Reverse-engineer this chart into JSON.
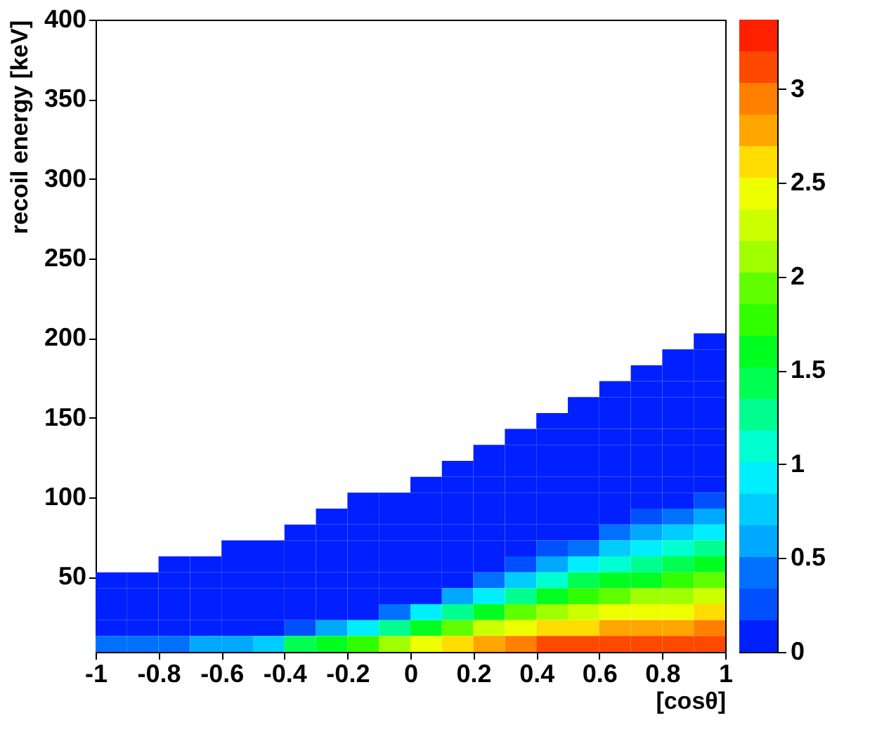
{
  "chart_data": {
    "type": "heatmap",
    "xlabel": "[cosθ]",
    "ylabel": "recoil energy [keV]",
    "x": [
      -0.95,
      -0.85,
      -0.75,
      -0.65,
      -0.55,
      -0.45,
      -0.35,
      -0.25,
      -0.15,
      -0.05,
      0.05,
      0.15,
      0.25,
      0.35,
      0.45,
      0.55,
      0.65,
      0.75,
      0.85,
      0.95
    ],
    "y": [
      198,
      188,
      178,
      168,
      158,
      148,
      138,
      128,
      118,
      108,
      98,
      88,
      78,
      68,
      58,
      48,
      38,
      28,
      18,
      8
    ],
    "cells": [
      [
        null,
        null,
        null,
        null,
        null,
        null,
        null,
        null,
        null,
        null,
        null,
        null,
        null,
        null,
        null,
        null,
        null,
        null,
        null,
        0.05
      ],
      [
        null,
        null,
        null,
        null,
        null,
        null,
        null,
        null,
        null,
        null,
        null,
        null,
        null,
        null,
        null,
        null,
        null,
        null,
        0.05,
        0.05
      ],
      [
        null,
        null,
        null,
        null,
        null,
        null,
        null,
        null,
        null,
        null,
        null,
        null,
        null,
        null,
        null,
        null,
        null,
        0.05,
        0.05,
        0.05
      ],
      [
        null,
        null,
        null,
        null,
        null,
        null,
        null,
        null,
        null,
        null,
        null,
        null,
        null,
        null,
        null,
        null,
        0.05,
        0.05,
        0.05,
        0.05
      ],
      [
        null,
        null,
        null,
        null,
        null,
        null,
        null,
        null,
        null,
        null,
        null,
        null,
        null,
        null,
        null,
        0.05,
        0.05,
        0.05,
        0.05,
        0.05
      ],
      [
        null,
        null,
        null,
        null,
        null,
        null,
        null,
        null,
        null,
        null,
        null,
        null,
        null,
        null,
        0.05,
        0.05,
        0.05,
        0.05,
        0.05,
        0.05
      ],
      [
        null,
        null,
        null,
        null,
        null,
        null,
        null,
        null,
        null,
        null,
        null,
        null,
        null,
        0.05,
        0.05,
        0.05,
        0.05,
        0.05,
        0.05,
        0.05
      ],
      [
        null,
        null,
        null,
        null,
        null,
        null,
        null,
        null,
        null,
        null,
        null,
        null,
        0.05,
        0.05,
        0.05,
        0.05,
        0.05,
        0.05,
        0.05,
        0.05
      ],
      [
        null,
        null,
        null,
        null,
        null,
        null,
        null,
        null,
        null,
        null,
        null,
        0.05,
        0.05,
        0.05,
        0.05,
        0.05,
        0.05,
        0.05,
        0.05,
        0.1
      ],
      [
        null,
        null,
        null,
        null,
        null,
        null,
        null,
        null,
        null,
        null,
        0.05,
        0.05,
        0.05,
        0.05,
        0.05,
        0.05,
        0.05,
        0.05,
        0.1,
        0.1
      ],
      [
        null,
        null,
        null,
        null,
        null,
        null,
        null,
        null,
        0.05,
        0.05,
        0.05,
        0.05,
        0.05,
        0.05,
        0.05,
        0.05,
        0.1,
        0.1,
        0.1,
        0.24
      ],
      [
        null,
        null,
        null,
        null,
        null,
        null,
        null,
        0.05,
        0.05,
        0.05,
        0.05,
        0.05,
        0.05,
        0.05,
        0.05,
        0.1,
        0.1,
        0.17,
        0.41,
        0.57
      ],
      [
        null,
        null,
        null,
        null,
        null,
        null,
        0.05,
        0.05,
        0.05,
        0.05,
        0.05,
        0.05,
        0.05,
        0.1,
        0.1,
        0.1,
        0.34,
        0.55,
        0.76,
        0.9
      ],
      [
        null,
        null,
        null,
        null,
        0.05,
        0.05,
        0.05,
        0.05,
        0.05,
        0.05,
        0.05,
        0.05,
        0.1,
        0.1,
        0.17,
        0.48,
        0.74,
        0.92,
        1.11,
        1.23
      ],
      [
        null,
        null,
        0.05,
        0.05,
        0.05,
        0.05,
        0.05,
        0.05,
        0.05,
        0.05,
        0.05,
        0.1,
        0.1,
        0.27,
        0.65,
        0.92,
        1.15,
        1.3,
        1.46,
        1.56
      ],
      [
        0.05,
        0.05,
        0.05,
        0.05,
        0.05,
        0.05,
        0.05,
        0.05,
        0.05,
        0.1,
        0.1,
        0.1,
        0.41,
        0.81,
        1.13,
        1.36,
        1.55,
        1.68,
        1.8,
        1.88
      ],
      [
        0.05,
        0.05,
        0.05,
        0.05,
        0.05,
        0.05,
        0.1,
        0.1,
        0.1,
        0.1,
        0.1,
        0.63,
        1.01,
        1.34,
        1.61,
        1.8,
        1.96,
        2.06,
        2.15,
        2.21
      ],
      [
        0.05,
        0.1,
        0.1,
        0.1,
        0.1,
        0.1,
        0.1,
        0.1,
        0.1,
        0.5,
        0.91,
        1.29,
        1.62,
        1.87,
        2.09,
        2.24,
        2.37,
        2.43,
        2.5,
        2.54
      ],
      [
        0.1,
        0.1,
        0.1,
        0.1,
        0.1,
        0.1,
        0.28,
        0.65,
        0.96,
        1.33,
        1.64,
        1.94,
        2.22,
        2.41,
        2.57,
        2.68,
        2.77,
        2.81,
        2.85,
        2.87
      ],
      [
        0.35,
        0.4,
        0.45,
        0.55,
        0.65,
        0.8,
        1.37,
        1.61,
        1.84,
        2.15,
        2.38,
        2.6,
        2.82,
        2.94,
        3.06,
        3.12,
        3.18,
        3.19,
        3.2,
        3.2
      ]
    ],
    "colors": [
      "#0020ff",
      "#0050ff",
      "#0070ff",
      "#00a8ff",
      "#00ccff",
      "#00eeff",
      "#00ffd0",
      "#00ff90",
      "#00ff50",
      "#00ff20",
      "#30ff00",
      "#60ff00",
      "#a0ff00",
      "#ccff00",
      "#eeff00",
      "#ffdd00",
      "#ffa500",
      "#ff8000",
      "#ff4800",
      "#ff2000"
    ],
    "clim": [
      0,
      3.37
    ],
    "cticks": [
      0,
      0.5,
      1,
      1.5,
      2,
      2.5,
      3
    ],
    "xlim": [
      -1,
      1
    ],
    "xticks": [
      -1,
      -0.8,
      -0.6,
      -0.4,
      -0.2,
      0,
      0.2,
      0.4,
      0.6,
      0.8,
      1
    ],
    "ylim": [
      3,
      400
    ],
    "yticks": [
      50,
      100,
      150,
      200,
      250,
      300,
      350,
      400
    ]
  }
}
